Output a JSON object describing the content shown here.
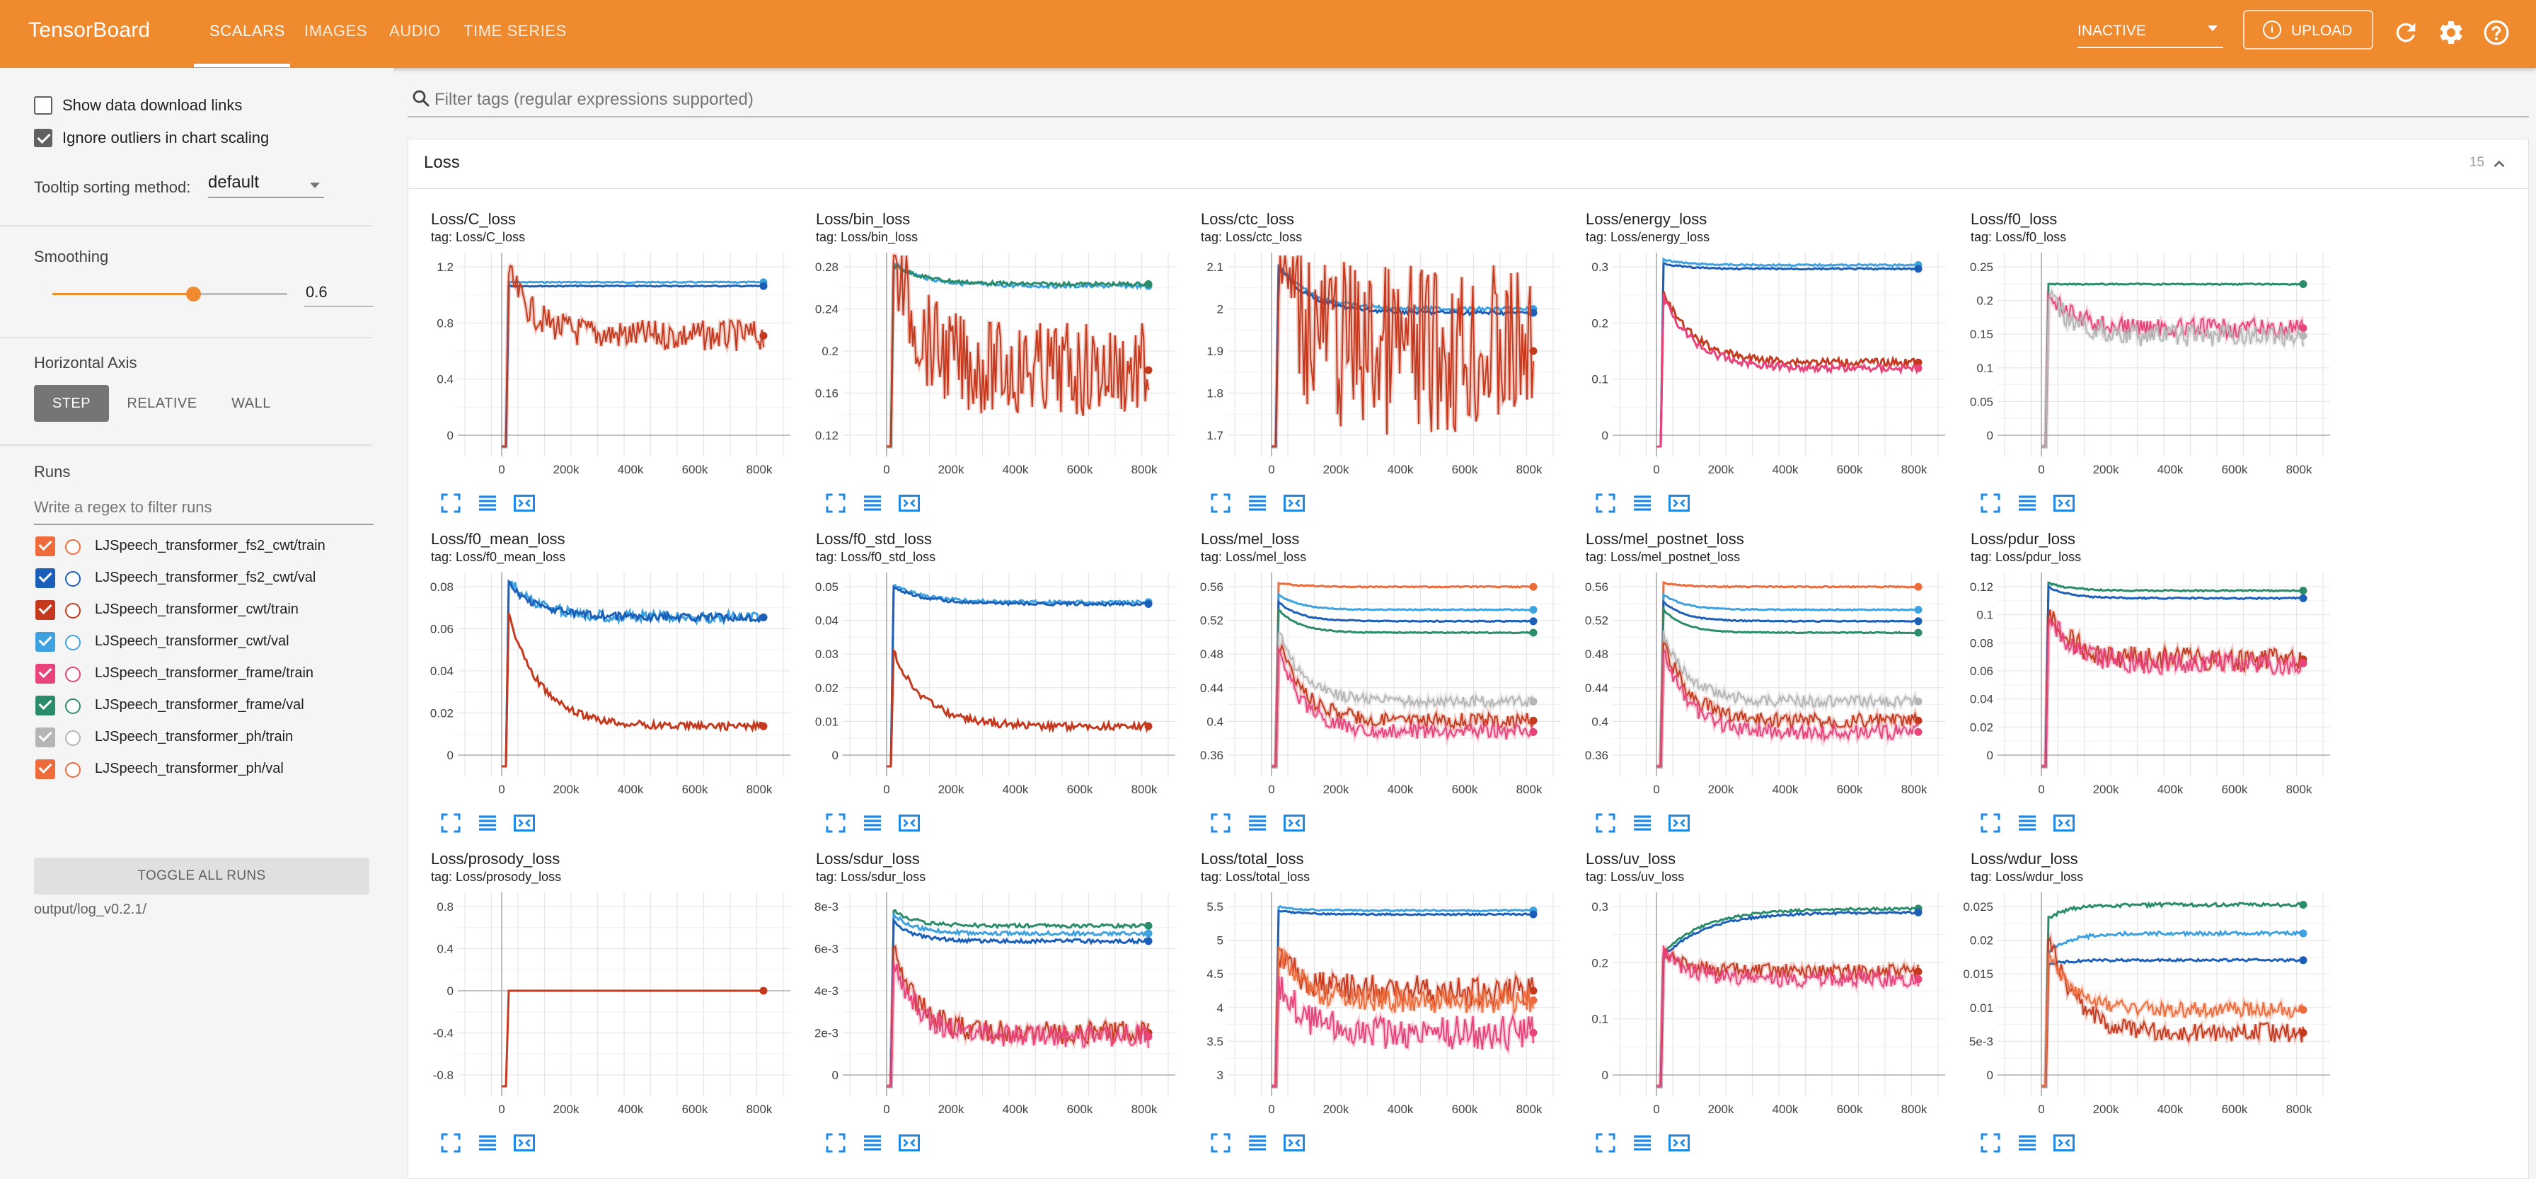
{
  "app": {
    "brand": "TensorBoard",
    "nav_tabs": [
      "SCALARS",
      "IMAGES",
      "AUDIO",
      "TIME SERIES"
    ],
    "active_tab": "SCALARS",
    "run_select_value": "INACTIVE",
    "upload_label": "UPLOAD",
    "accent_color": "#ef8a2e"
  },
  "sidebar": {
    "show_download_links": "Show data download links",
    "ignore_outliers": "Ignore outliers in chart scaling",
    "tooltip_sorting_label": "Tooltip sorting method:",
    "tooltip_sorting_value": "default",
    "smoothing_label": "Smoothing",
    "smoothing_value": "0.6",
    "horizontal_axis_label": "Horizontal Axis",
    "axis_options": [
      "STEP",
      "RELATIVE",
      "WALL"
    ],
    "axis_selected": "STEP",
    "runs_label": "Runs",
    "runs_filter_placeholder": "Write a regex to filter runs",
    "runs": [
      {
        "name": "LJSpeech_transformer_fs2_cwt/train",
        "color": "#ee6b3b"
      },
      {
        "name": "LJSpeech_transformer_fs2_cwt/val",
        "color": "#1c5fb8"
      },
      {
        "name": "LJSpeech_transformer_cwt/train",
        "color": "#c53a1e"
      },
      {
        "name": "LJSpeech_transformer_cwt/val",
        "color": "#3fa2e0"
      },
      {
        "name": "LJSpeech_transformer_frame/train",
        "color": "#e8447b"
      },
      {
        "name": "LJSpeech_transformer_frame/val",
        "color": "#2b8c6b"
      },
      {
        "name": "LJSpeech_transformer_ph/train",
        "color": "#b5b5b5"
      },
      {
        "name": "LJSpeech_transformer_ph/val",
        "color": "#ee6b3b"
      }
    ],
    "toggle_all": "TOGGLE ALL RUNS",
    "logdir": "output/log_v0.2.1/"
  },
  "main": {
    "filter_placeholder": "Filter tags (regular expressions supported)",
    "category_title": "Loss",
    "category_count": "15"
  },
  "chart_data": [
    {
      "type": "line",
      "title": "Loss/C_loss",
      "tag": "tag: Loss/C_loss",
      "yticks": [
        "1.2",
        "0.8",
        "0.4",
        "0"
      ],
      "xticks": [
        "0",
        "200k",
        "400k",
        "600k",
        "800k"
      ]
    },
    {
      "type": "line",
      "title": "Loss/bin_loss",
      "tag": "tag: Loss/bin_loss",
      "yticks": [
        "0.28",
        "0.24",
        "0.2",
        "0.16",
        "0.12"
      ],
      "xticks": [
        "0",
        "200k",
        "400k",
        "600k",
        "800k"
      ]
    },
    {
      "type": "line",
      "title": "Loss/ctc_loss",
      "tag": "tag: Loss/ctc_loss",
      "yticks": [
        "2.1",
        "2",
        "1.9",
        "1.8",
        "1.7"
      ],
      "xticks": [
        "0",
        "200k",
        "400k",
        "600k",
        "800k"
      ]
    },
    {
      "type": "line",
      "title": "Loss/energy_loss",
      "tag": "tag: Loss/energy_loss",
      "yticks": [
        "0.3",
        "0.2",
        "0.1",
        "0"
      ],
      "xticks": [
        "0",
        "200k",
        "400k",
        "600k",
        "800k"
      ]
    },
    {
      "type": "line",
      "title": "Loss/f0_loss",
      "tag": "tag: Loss/f0_loss",
      "yticks": [
        "0.25",
        "0.2",
        "0.15",
        "0.1",
        "0.05",
        "0"
      ],
      "xticks": [
        "0",
        "200k",
        "400k",
        "600k",
        "800k"
      ]
    },
    {
      "type": "line",
      "title": "Loss/f0_mean_loss",
      "tag": "tag: Loss/f0_mean_loss",
      "yticks": [
        "0.08",
        "0.06",
        "0.04",
        "0.02",
        "0"
      ],
      "xticks": [
        "0",
        "200k",
        "400k",
        "600k",
        "800k"
      ]
    },
    {
      "type": "line",
      "title": "Loss/f0_std_loss",
      "tag": "tag: Loss/f0_std_loss",
      "yticks": [
        "0.05",
        "0.04",
        "0.03",
        "0.02",
        "0.01",
        "0"
      ],
      "xticks": [
        "0",
        "200k",
        "400k",
        "600k",
        "800k"
      ]
    },
    {
      "type": "line",
      "title": "Loss/mel_loss",
      "tag": "tag: Loss/mel_loss",
      "yticks": [
        "0.56",
        "0.52",
        "0.48",
        "0.44",
        "0.4",
        "0.36"
      ],
      "xticks": [
        "0",
        "200k",
        "400k",
        "600k",
        "800k"
      ]
    },
    {
      "type": "line",
      "title": "Loss/mel_postnet_loss",
      "tag": "tag: Loss/mel_postnet_loss",
      "yticks": [
        "0.56",
        "0.52",
        "0.48",
        "0.44",
        "0.4",
        "0.36"
      ],
      "xticks": [
        "0",
        "200k",
        "400k",
        "600k",
        "800k"
      ]
    },
    {
      "type": "line",
      "title": "Loss/pdur_loss",
      "tag": "tag: Loss/pdur_loss",
      "yticks": [
        "0.12",
        "0.1",
        "0.08",
        "0.06",
        "0.04",
        "0.02",
        "0"
      ],
      "xticks": [
        "0",
        "200k",
        "400k",
        "600k",
        "800k"
      ]
    },
    {
      "type": "line",
      "title": "Loss/prosody_loss",
      "tag": "tag: Loss/prosody_loss",
      "yticks": [
        "0.8",
        "0.4",
        "0",
        "-0.4",
        "-0.8"
      ],
      "xticks": [
        "0",
        "200k",
        "400k",
        "600k",
        "800k"
      ]
    },
    {
      "type": "line",
      "title": "Loss/sdur_loss",
      "tag": "tag: Loss/sdur_loss",
      "yticks": [
        "8e-3",
        "6e-3",
        "4e-3",
        "2e-3",
        "0"
      ],
      "xticks": [
        "0",
        "200k",
        "400k",
        "600k",
        "800k"
      ]
    },
    {
      "type": "line",
      "title": "Loss/total_loss",
      "tag": "tag: Loss/total_loss",
      "yticks": [
        "5.5",
        "5",
        "4.5",
        "4",
        "3.5",
        "3"
      ],
      "xticks": [
        "0",
        "200k",
        "400k",
        "600k",
        "800k"
      ]
    },
    {
      "type": "line",
      "title": "Loss/uv_loss",
      "tag": "tag: Loss/uv_loss",
      "yticks": [
        "0.3",
        "0.2",
        "0.1",
        "0"
      ],
      "xticks": [
        "0",
        "200k",
        "400k",
        "600k",
        "800k"
      ]
    },
    {
      "type": "line",
      "title": "Loss/wdur_loss",
      "tag": "tag: Loss/wdur_loss",
      "yticks": [
        "0.025",
        "0.02",
        "0.015",
        "0.01",
        "5e-3",
        "0"
      ],
      "xticks": [
        "0",
        "200k",
        "400k",
        "600k",
        "800k"
      ]
    }
  ]
}
